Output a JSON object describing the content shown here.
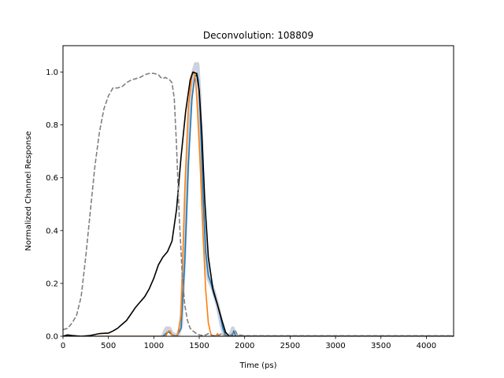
{
  "chart_data": {
    "type": "line",
    "title": "Deconvolution: 108809",
    "xlabel": "Time (ps)",
    "ylabel": "Normalized Channel Response",
    "xlim": [
      0,
      4300
    ],
    "ylim": [
      0,
      1.1
    ],
    "xticks": [
      0,
      500,
      1000,
      1500,
      2000,
      2500,
      3000,
      3500,
      4000
    ],
    "yticks": [
      0.0,
      0.2,
      0.4,
      0.6,
      0.8,
      1.0
    ],
    "xtick_labels": [
      "0",
      "500",
      "1000",
      "1500",
      "2000",
      "2500",
      "3000",
      "3500",
      "4000"
    ],
    "ytick_labels": [
      "0.0",
      "0.2",
      "0.4",
      "0.6",
      "0.8",
      "1.0"
    ],
    "grid": false,
    "colors": {
      "band": "#aab4c8",
      "blue": "#1f77b4",
      "orange": "#ff7f0e",
      "black": "#000000",
      "gray": "#808080"
    },
    "series": [
      {
        "style": "solid-gray-band",
        "points": [
          [
            1100,
            0
          ],
          [
            1140,
            0.03
          ],
          [
            1170,
            0.03
          ],
          [
            1200,
            0.01
          ],
          [
            1260,
            0
          ],
          [
            1300,
            0.04
          ],
          [
            1340,
            0.35
          ],
          [
            1380,
            0.75
          ],
          [
            1420,
            0.98
          ],
          [
            1460,
            1.03
          ],
          [
            1480,
            1.03
          ],
          [
            1500,
            0.93
          ],
          [
            1530,
            0.62
          ],
          [
            1560,
            0.35
          ],
          [
            1600,
            0.22
          ],
          [
            1650,
            0.18
          ],
          [
            1700,
            0.12
          ],
          [
            1740,
            0.05
          ],
          [
            1770,
            0.01
          ],
          [
            1790,
            0
          ],
          [
            1820,
            0
          ],
          [
            1850,
            0.01
          ],
          [
            1870,
            0.03
          ],
          [
            1890,
            0
          ],
          [
            1960,
            0
          ]
        ]
      },
      {
        "style": "solid-blue",
        "points": [
          [
            0,
            0
          ],
          [
            1100,
            0
          ],
          [
            1150,
            0.015
          ],
          [
            1170,
            0.015
          ],
          [
            1200,
            0.005
          ],
          [
            1250,
            0
          ],
          [
            1300,
            0.03
          ],
          [
            1340,
            0.28
          ],
          [
            1380,
            0.65
          ],
          [
            1420,
            0.9
          ],
          [
            1450,
            0.98
          ],
          [
            1475,
            0.995
          ],
          [
            1490,
            0.97
          ],
          [
            1510,
            0.85
          ],
          [
            1540,
            0.55
          ],
          [
            1570,
            0.32
          ],
          [
            1600,
            0.23
          ],
          [
            1630,
            0.2
          ],
          [
            1660,
            0.16
          ],
          [
            1700,
            0.12
          ],
          [
            1730,
            0.08
          ],
          [
            1760,
            0.03
          ],
          [
            1790,
            0.003
          ],
          [
            1830,
            0
          ],
          [
            1860,
            0
          ],
          [
            1880,
            0.02
          ],
          [
            1900,
            0
          ],
          [
            4300,
            0
          ]
        ]
      },
      {
        "style": "solid-orange",
        "points": [
          [
            0,
            0
          ],
          [
            1130,
            0
          ],
          [
            1160,
            0.02
          ],
          [
            1180,
            0.02
          ],
          [
            1200,
            0.005
          ],
          [
            1230,
            0
          ],
          [
            1260,
            0
          ],
          [
            1300,
            0.08
          ],
          [
            1340,
            0.55
          ],
          [
            1380,
            0.87
          ],
          [
            1420,
            0.99
          ],
          [
            1440,
            1.0
          ],
          [
            1460,
            0.97
          ],
          [
            1480,
            0.86
          ],
          [
            1510,
            0.65
          ],
          [
            1540,
            0.4
          ],
          [
            1570,
            0.18
          ],
          [
            1600,
            0.05
          ],
          [
            1630,
            0.005
          ],
          [
            1660,
            0
          ],
          [
            1680,
            0
          ],
          [
            1700,
            0.01
          ],
          [
            1720,
            0
          ],
          [
            4300,
            0
          ]
        ]
      },
      {
        "style": "solid-black",
        "points": [
          [
            0,
            0
          ],
          [
            50,
            0.005
          ],
          [
            100,
            0.003
          ],
          [
            200,
            0
          ],
          [
            300,
            0.003
          ],
          [
            400,
            0.01
          ],
          [
            500,
            0.012
          ],
          [
            550,
            0.02
          ],
          [
            600,
            0.03
          ],
          [
            650,
            0.045
          ],
          [
            700,
            0.06
          ],
          [
            750,
            0.085
          ],
          [
            800,
            0.11
          ],
          [
            850,
            0.13
          ],
          [
            900,
            0.15
          ],
          [
            950,
            0.18
          ],
          [
            1000,
            0.22
          ],
          [
            1050,
            0.27
          ],
          [
            1100,
            0.3
          ],
          [
            1150,
            0.32
          ],
          [
            1200,
            0.36
          ],
          [
            1250,
            0.48
          ],
          [
            1300,
            0.68
          ],
          [
            1350,
            0.85
          ],
          [
            1400,
            0.97
          ],
          [
            1430,
            1.0
          ],
          [
            1470,
            0.995
          ],
          [
            1500,
            0.93
          ],
          [
            1530,
            0.76
          ],
          [
            1560,
            0.52
          ],
          [
            1600,
            0.3
          ],
          [
            1650,
            0.18
          ],
          [
            1700,
            0.12
          ],
          [
            1750,
            0.06
          ],
          [
            1790,
            0.015
          ],
          [
            1830,
            0
          ],
          [
            4300,
            0
          ]
        ]
      },
      {
        "style": "dashed-gray",
        "points": [
          [
            0,
            0.025
          ],
          [
            50,
            0.03
          ],
          [
            100,
            0.05
          ],
          [
            150,
            0.08
          ],
          [
            200,
            0.15
          ],
          [
            250,
            0.3
          ],
          [
            300,
            0.47
          ],
          [
            350,
            0.64
          ],
          [
            400,
            0.77
          ],
          [
            450,
            0.86
          ],
          [
            500,
            0.91
          ],
          [
            550,
            0.94
          ],
          [
            600,
            0.94
          ],
          [
            650,
            0.945
          ],
          [
            700,
            0.96
          ],
          [
            750,
            0.97
          ],
          [
            800,
            0.975
          ],
          [
            850,
            0.98
          ],
          [
            900,
            0.99
          ],
          [
            950,
            0.995
          ],
          [
            1000,
            0.995
          ],
          [
            1050,
            0.99
          ],
          [
            1075,
            0.98
          ],
          [
            1100,
            0.975
          ],
          [
            1125,
            0.98
          ],
          [
            1150,
            0.975
          ],
          [
            1175,
            0.97
          ],
          [
            1200,
            0.96
          ],
          [
            1225,
            0.9
          ],
          [
            1250,
            0.72
          ],
          [
            1280,
            0.45
          ],
          [
            1310,
            0.25
          ],
          [
            1340,
            0.12
          ],
          [
            1370,
            0.06
          ],
          [
            1400,
            0.03
          ],
          [
            1430,
            0.02
          ],
          [
            1470,
            0.01
          ],
          [
            1500,
            0.005
          ],
          [
            1550,
            0.002
          ],
          [
            1600,
            0.01
          ],
          [
            1650,
            0.003
          ],
          [
            1700,
            0.002
          ],
          [
            1750,
            0.01
          ],
          [
            1800,
            0.003
          ],
          [
            1850,
            0.005
          ],
          [
            1900,
            0.02
          ],
          [
            1920,
            0.005
          ],
          [
            2000,
            0.002
          ],
          [
            4300,
            0.002
          ]
        ]
      }
    ]
  }
}
